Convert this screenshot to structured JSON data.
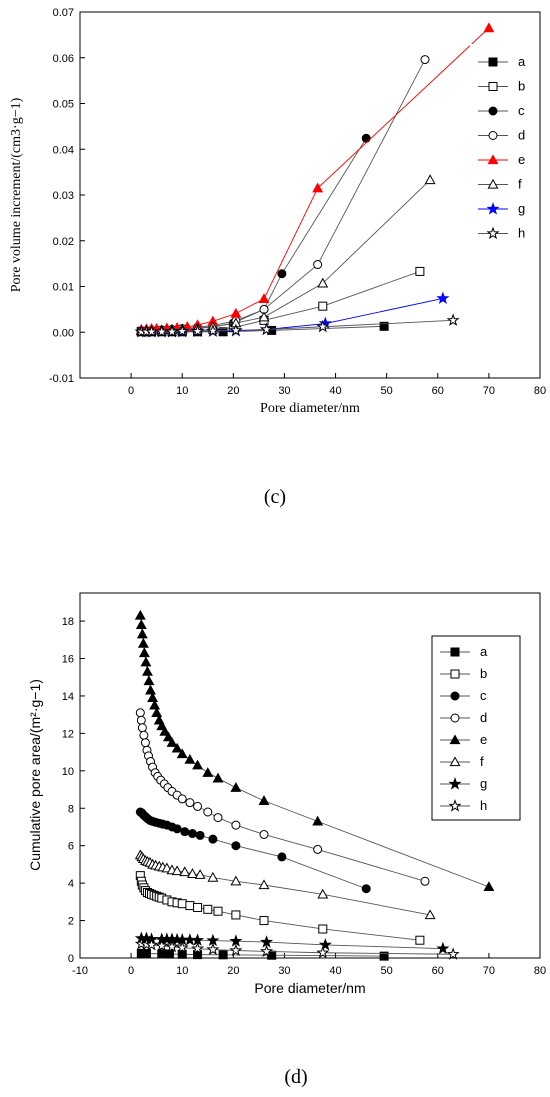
{
  "chart_data": [
    {
      "type": "line",
      "panel_label": "(c)",
      "xlabel": "Pore diameter/nm",
      "ylabel": "Pore volume increment/(cm3·g−1)",
      "xlim": [
        -10,
        80
      ],
      "ylim": [
        -0.01,
        0.07
      ],
      "xticks": [
        "0",
        "10",
        "20",
        "30",
        "40",
        "50",
        "60",
        "70",
        "80"
      ],
      "yticks": [
        "-0.01",
        "0.00",
        "0.01",
        "0.02",
        "0.03",
        "0.04",
        "0.05",
        "0.06",
        "0.07"
      ],
      "legend_position": "right",
      "series": [
        {
          "name": "a",
          "marker": "square-filled",
          "color": "#000000",
          "x": [
            2,
            3,
            4,
            6,
            8,
            10,
            13,
            18,
            27.5,
            49.5
          ],
          "y": [
            0.0001,
            0.0001,
            0.0001,
            0.0001,
            0.0001,
            0.0001,
            0.0001,
            0.0001,
            0.0004,
            0.0013
          ]
        },
        {
          "name": "b",
          "marker": "square-open",
          "color": "#000000",
          "x": [
            2,
            3,
            4,
            6,
            8,
            10,
            13,
            16,
            20,
            26,
            37.5,
            56.5
          ],
          "y": [
            0.0002,
            0.0002,
            0.0002,
            0.0002,
            0.0002,
            0.0003,
            0.0004,
            0.0006,
            0.001,
            0.0026,
            0.0057,
            0.0133
          ]
        },
        {
          "name": "c",
          "marker": "circle-filled",
          "color": "#000000",
          "x": [
            2,
            3,
            4,
            6,
            8,
            10,
            13,
            16,
            20,
            26,
            29.5,
            46
          ],
          "y": [
            0.0003,
            0.0003,
            0.0003,
            0.0004,
            0.0005,
            0.0006,
            0.0008,
            0.0012,
            0.002,
            0.005,
            0.0128,
            0.0424
          ]
        },
        {
          "name": "d",
          "marker": "circle-open",
          "color": "#000000",
          "x": [
            2,
            3,
            4,
            6,
            8,
            10,
            13,
            16,
            20.5,
            26,
            36.5,
            57.5
          ],
          "y": [
            0.0003,
            0.0003,
            0.0004,
            0.0005,
            0.0006,
            0.0008,
            0.0011,
            0.0015,
            0.0025,
            0.005,
            0.0148,
            0.0596
          ]
        },
        {
          "name": "e",
          "marker": "triangle-filled",
          "color": "#ff0000",
          "x": [
            2,
            3,
            4,
            5,
            7,
            9,
            11,
            13,
            16,
            20.5,
            26,
            36.5,
            70
          ],
          "y": [
            0.0006,
            0.0007,
            0.0008,
            0.0008,
            0.0009,
            0.001,
            0.0012,
            0.0016,
            0.0024,
            0.0041,
            0.0073,
            0.0315,
            0.0665
          ]
        },
        {
          "name": "f",
          "marker": "triangle-open",
          "color": "#000000",
          "x": [
            2,
            3,
            4,
            6,
            8,
            10,
            13,
            16,
            20.5,
            26,
            37.5,
            58.5
          ],
          "y": [
            0.0003,
            0.0003,
            0.0004,
            0.0005,
            0.0006,
            0.0007,
            0.0009,
            0.0012,
            0.002,
            0.0033,
            0.0107,
            0.0333
          ]
        },
        {
          "name": "g",
          "marker": "star-filled",
          "color": "#0000ff",
          "x": [
            2,
            3,
            4,
            6,
            8,
            10,
            13,
            16,
            20.5,
            26.5,
            38,
            61
          ],
          "y": [
            0.0001,
            0.0001,
            0.0001,
            0.0001,
            0.0001,
            0.0001,
            0.0002,
            0.0002,
            0.0003,
            0.0006,
            0.0019,
            0.0074
          ]
        },
        {
          "name": "h",
          "marker": "star-open",
          "color": "#000000",
          "x": [
            2,
            3,
            4,
            6,
            8,
            10,
            13,
            16,
            20.5,
            26.5,
            37.5,
            63
          ],
          "y": [
            0.0001,
            0.0001,
            0.0001,
            0.0001,
            0.0001,
            0.0002,
            0.0002,
            0.0003,
            0.0004,
            0.0006,
            0.0012,
            0.0026
          ]
        }
      ]
    },
    {
      "type": "line",
      "panel_label": "(d)",
      "xlabel": "Pore diameter/nm",
      "ylabel": "Cumulative pore area/(m²·g−1)",
      "xlim": [
        -10,
        80
      ],
      "ylim": [
        0,
        19.5
      ],
      "xticks": [
        "-10",
        "0",
        "10",
        "20",
        "30",
        "40",
        "50",
        "60",
        "70",
        "80"
      ],
      "yticks": [
        "0",
        "2",
        "4",
        "6",
        "8",
        "10",
        "12",
        "14",
        "16",
        "18"
      ],
      "legend_position": "right",
      "series": [
        {
          "name": "a",
          "marker": "square-filled",
          "color": "#000000",
          "x": [
            2,
            3,
            6,
            7.5,
            10,
            13,
            18,
            27.5,
            49.5
          ],
          "y": [
            0.25,
            0.24,
            0.22,
            0.21,
            0.2,
            0.18,
            0.17,
            0.15,
            0.1
          ]
        },
        {
          "name": "b",
          "marker": "square-open",
          "color": "#000000",
          "x": [
            1.8,
            2,
            2.2,
            2.5,
            2.8,
            3.2,
            3.6,
            4,
            4.5,
            5,
            5.5,
            6,
            7,
            8,
            9,
            10,
            11.5,
            13,
            15,
            17,
            20.5,
            26,
            37.5,
            56.5
          ],
          "y": [
            4.4,
            4.1,
            3.9,
            3.75,
            3.6,
            3.5,
            3.45,
            3.4,
            3.35,
            3.3,
            3.25,
            3.2,
            3.1,
            3.0,
            2.95,
            2.9,
            2.8,
            2.7,
            2.6,
            2.5,
            2.3,
            2.0,
            1.55,
            0.95
          ]
        },
        {
          "name": "c",
          "marker": "circle-filled",
          "color": "#000000",
          "x": [
            1.8,
            2.1,
            2.4,
            2.8,
            3.2,
            3.7,
            4.2,
            4.8,
            5.5,
            6.2,
            7,
            8,
            9,
            10.5,
            12,
            13.5,
            16,
            20.5,
            29.5,
            46
          ],
          "y": [
            7.8,
            7.75,
            7.65,
            7.55,
            7.45,
            7.35,
            7.3,
            7.25,
            7.2,
            7.15,
            7.1,
            7.0,
            6.9,
            6.75,
            6.65,
            6.55,
            6.35,
            6.0,
            5.4,
            3.7
          ]
        },
        {
          "name": "d",
          "marker": "circle-open",
          "color": "#000000",
          "x": [
            1.8,
            2,
            2.2,
            2.5,
            2.8,
            3.1,
            3.4,
            3.8,
            4.2,
            4.7,
            5.2,
            5.8,
            6.5,
            7.2,
            8,
            9,
            10,
            11.5,
            13,
            15,
            17,
            20.5,
            26,
            36.5,
            57.5
          ],
          "y": [
            13.1,
            12.7,
            12.3,
            11.9,
            11.5,
            11.1,
            10.8,
            10.5,
            10.2,
            9.9,
            9.7,
            9.5,
            9.3,
            9.1,
            8.9,
            8.7,
            8.5,
            8.3,
            8.1,
            7.8,
            7.5,
            7.1,
            6.6,
            5.8,
            4.1
          ]
        },
        {
          "name": "e",
          "marker": "triangle-filled",
          "color": "#000000",
          "x": [
            1.8,
            2,
            2.2,
            2.4,
            2.6,
            2.9,
            3.2,
            3.5,
            3.8,
            4.2,
            4.6,
            5,
            5.5,
            6,
            6.6,
            7.3,
            8,
            9,
            10,
            11.5,
            13,
            15,
            17,
            20.5,
            26,
            36.5,
            70
          ],
          "y": [
            18.3,
            17.8,
            17.3,
            16.8,
            16.3,
            15.8,
            15.3,
            14.8,
            14.3,
            13.9,
            13.5,
            13.1,
            12.7,
            12.4,
            12.1,
            11.8,
            11.5,
            11.2,
            10.9,
            10.6,
            10.3,
            9.9,
            9.6,
            9.1,
            8.4,
            7.3,
            3.8
          ]
        },
        {
          "name": "f",
          "marker": "triangle-open",
          "color": "#000000",
          "x": [
            1.8,
            2.1,
            2.4,
            2.8,
            3.2,
            3.7,
            4.2,
            4.8,
            5.5,
            6.2,
            7,
            8,
            9,
            10.5,
            12,
            13.5,
            16,
            20.5,
            26,
            37.5,
            58.5
          ],
          "y": [
            5.5,
            5.4,
            5.3,
            5.2,
            5.15,
            5.1,
            5.0,
            4.95,
            4.9,
            4.85,
            4.8,
            4.7,
            4.65,
            4.6,
            4.5,
            4.45,
            4.3,
            4.1,
            3.9,
            3.4,
            2.3
          ]
        },
        {
          "name": "g",
          "marker": "star-filled",
          "color": "#000000",
          "x": [
            2,
            3,
            4,
            6,
            7,
            8,
            9,
            10,
            11.5,
            13,
            16,
            20.5,
            26.5,
            38,
            61
          ],
          "y": [
            1.05,
            1.05,
            1.0,
            1.0,
            1.0,
            1.0,
            0.98,
            0.97,
            0.96,
            0.95,
            0.93,
            0.9,
            0.85,
            0.7,
            0.5
          ]
        },
        {
          "name": "h",
          "marker": "star-open",
          "color": "#000000",
          "x": [
            2,
            3,
            4,
            6,
            8,
            10,
            13,
            16,
            20.5,
            26.5,
            37.5,
            63
          ],
          "y": [
            0.75,
            0.72,
            0.7,
            0.65,
            0.6,
            0.55,
            0.5,
            0.45,
            0.4,
            0.35,
            0.28,
            0.2
          ]
        }
      ]
    }
  ]
}
